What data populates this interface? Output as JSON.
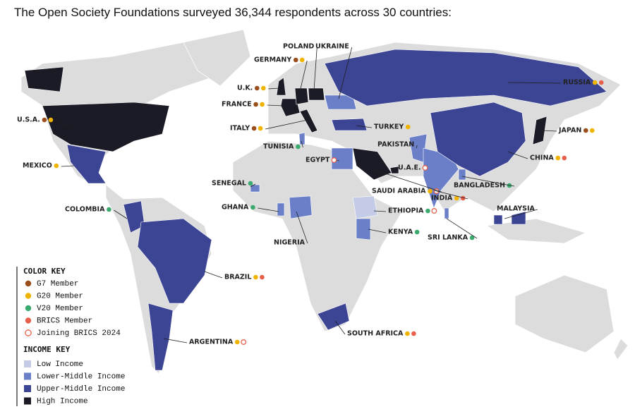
{
  "title": "The Open Society Foundations surveyed 36,344 respondents across 30 countries:",
  "color_key": {
    "title": "COLOR KEY",
    "items": [
      {
        "label": "G7 Member",
        "color": "#9a4e1c",
        "hollow": false
      },
      {
        "label": "G20 Member",
        "color": "#f0b400",
        "hollow": false
      },
      {
        "label": "V20 Member",
        "color": "#3aaa6e",
        "hollow": false
      },
      {
        "label": "BRICS Member",
        "color": "#e8604c",
        "hollow": false
      },
      {
        "label": "Joining BRICS 2024",
        "color": "#e8604c",
        "hollow": true
      }
    ]
  },
  "income_key": {
    "title": "INCOME KEY",
    "items": [
      {
        "label": "Low Income",
        "color": "#c3cbe6"
      },
      {
        "label": "Lower-Middle Income",
        "color": "#6a7fc8"
      },
      {
        "label": "Upper-Middle Income",
        "color": "#3c4494"
      },
      {
        "label": "High Income",
        "color": "#1b1b26"
      }
    ]
  },
  "countries": [
    {
      "name": "U.S.A.",
      "income": "High Income",
      "groups": [
        "G7 Member",
        "G20 Member"
      ]
    },
    {
      "name": "MEXICO",
      "income": "Upper-Middle Income",
      "groups": [
        "G20 Member"
      ]
    },
    {
      "name": "COLOMBIA",
      "income": "Upper-Middle Income",
      "groups": [
        "V20 Member"
      ]
    },
    {
      "name": "BRAZIL",
      "income": "Upper-Middle Income",
      "groups": [
        "G20 Member",
        "BRICS Member"
      ]
    },
    {
      "name": "ARGENTINA",
      "income": "Upper-Middle Income",
      "groups": [
        "G20 Member",
        "Joining BRICS 2024"
      ]
    },
    {
      "name": "U.K.",
      "income": "High Income",
      "groups": [
        "G7 Member",
        "G20 Member"
      ]
    },
    {
      "name": "FRANCE",
      "income": "High Income",
      "groups": [
        "G7 Member",
        "G20 Member"
      ]
    },
    {
      "name": "ITALY",
      "income": "High Income",
      "groups": [
        "G7 Member",
        "G20 Member"
      ]
    },
    {
      "name": "GERMANY",
      "income": "High Income",
      "groups": [
        "G7 Member",
        "G20 Member"
      ]
    },
    {
      "name": "POLAND",
      "income": "High Income",
      "groups": []
    },
    {
      "name": "UKRAINE",
      "income": "Lower-Middle Income",
      "groups": []
    },
    {
      "name": "RUSSIA",
      "income": "Upper-Middle Income",
      "groups": [
        "G20 Member",
        "BRICS Member"
      ]
    },
    {
      "name": "TURKEY",
      "income": "Upper-Middle Income",
      "groups": [
        "G20 Member"
      ]
    },
    {
      "name": "TUNISIA",
      "income": "Lower-Middle Income",
      "groups": [
        "V20 Member"
      ]
    },
    {
      "name": "EGYPT",
      "income": "Lower-Middle Income",
      "groups": [
        "Joining BRICS 2024"
      ]
    },
    {
      "name": "SENEGAL",
      "income": "Lower-Middle Income",
      "groups": [
        "V20 Member"
      ]
    },
    {
      "name": "GHANA",
      "income": "Lower-Middle Income",
      "groups": [
        "V20 Member"
      ]
    },
    {
      "name": "NIGERIA",
      "income": "Lower-Middle Income",
      "groups": []
    },
    {
      "name": "ETHIOPIA",
      "income": "Low Income",
      "groups": [
        "V20 Member",
        "Joining BRICS 2024"
      ]
    },
    {
      "name": "KENYA",
      "income": "Lower-Middle Income",
      "groups": [
        "V20 Member"
      ]
    },
    {
      "name": "SOUTH AFRICA",
      "income": "Upper-Middle Income",
      "groups": [
        "G20 Member",
        "BRICS Member"
      ]
    },
    {
      "name": "SAUDI ARABIA",
      "income": "High Income",
      "groups": [
        "G20 Member",
        "Joining BRICS 2024"
      ]
    },
    {
      "name": "U.A.E.",
      "income": "High Income",
      "groups": [
        "Joining BRICS 2024"
      ]
    },
    {
      "name": "PAKISTAN",
      "income": "Lower-Middle Income",
      "groups": []
    },
    {
      "name": "INDIA",
      "income": "Lower-Middle Income",
      "groups": [
        "G20 Member",
        "BRICS Member"
      ]
    },
    {
      "name": "SRI LANKA",
      "income": "Lower-Middle Income",
      "groups": [
        "V20 Member"
      ]
    },
    {
      "name": "BANGLADESH",
      "income": "Lower-Middle Income",
      "groups": [
        "V20 Member"
      ]
    },
    {
      "name": "MALAYSIA",
      "income": "Upper-Middle Income",
      "groups": []
    },
    {
      "name": "CHINA",
      "income": "Upper-Middle Income",
      "groups": [
        "G20 Member",
        "BRICS Member"
      ]
    },
    {
      "name": "JAPAN",
      "income": "High Income",
      "groups": [
        "G7 Member",
        "G20 Member"
      ]
    }
  ]
}
